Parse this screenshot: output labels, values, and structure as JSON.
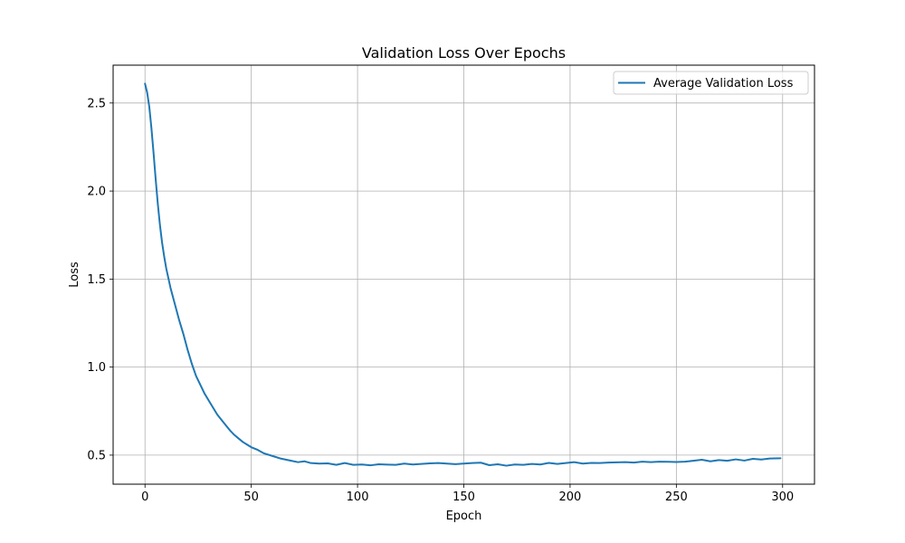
{
  "chart_data": {
    "type": "line",
    "title": "Validation Loss Over Epochs",
    "xlabel": "Epoch",
    "ylabel": "Loss",
    "xlim": [
      -15,
      315
    ],
    "ylim": [
      0.335,
      2.715
    ],
    "xticks": [
      0,
      50,
      100,
      150,
      200,
      250,
      300
    ],
    "yticks": [
      0.5,
      1.0,
      1.5,
      2.0,
      2.5
    ],
    "xtick_labels": [
      "0",
      "50",
      "100",
      "150",
      "200",
      "250",
      "300"
    ],
    "ytick_labels": [
      "0.5",
      "1.0",
      "1.5",
      "2.0",
      "2.5"
    ],
    "grid": true,
    "legend_position": "top-right",
    "series": [
      {
        "name": "Average Validation Loss",
        "color": "#1f77b4",
        "x": [
          0,
          1,
          2,
          3,
          4,
          5,
          6,
          7,
          8,
          9,
          10,
          12,
          14,
          16,
          18,
          20,
          22,
          24,
          26,
          28,
          30,
          32,
          34,
          36,
          38,
          40,
          42,
          44,
          46,
          48,
          50,
          53,
          56,
          60,
          64,
          68,
          72,
          75,
          78,
          82,
          86,
          90,
          94,
          98,
          102,
          106,
          110,
          114,
          118,
          122,
          126,
          130,
          134,
          138,
          142,
          146,
          150,
          154,
          158,
          162,
          166,
          170,
          174,
          178,
          182,
          186,
          190,
          194,
          198,
          202,
          206,
          210,
          214,
          218,
          222,
          226,
          230,
          234,
          238,
          242,
          246,
          250,
          254,
          258,
          262,
          266,
          270,
          274,
          278,
          282,
          286,
          290,
          294,
          299
        ],
        "y": [
          2.61,
          2.56,
          2.48,
          2.36,
          2.22,
          2.07,
          1.93,
          1.81,
          1.71,
          1.63,
          1.56,
          1.45,
          1.36,
          1.27,
          1.19,
          1.1,
          1.02,
          0.95,
          0.9,
          0.85,
          0.81,
          0.77,
          0.73,
          0.7,
          0.67,
          0.64,
          0.615,
          0.595,
          0.575,
          0.56,
          0.545,
          0.53,
          0.51,
          0.495,
          0.48,
          0.47,
          0.46,
          0.465,
          0.455,
          0.452,
          0.453,
          0.445,
          0.455,
          0.445,
          0.447,
          0.442,
          0.448,
          0.446,
          0.445,
          0.452,
          0.447,
          0.45,
          0.453,
          0.455,
          0.452,
          0.449,
          0.452,
          0.455,
          0.457,
          0.443,
          0.448,
          0.44,
          0.447,
          0.445,
          0.45,
          0.447,
          0.456,
          0.45,
          0.455,
          0.46,
          0.452,
          0.456,
          0.455,
          0.458,
          0.459,
          0.46,
          0.458,
          0.463,
          0.46,
          0.463,
          0.462,
          0.461,
          0.463,
          0.468,
          0.474,
          0.465,
          0.472,
          0.468,
          0.476,
          0.469,
          0.479,
          0.475,
          0.481,
          0.482
        ]
      }
    ]
  }
}
